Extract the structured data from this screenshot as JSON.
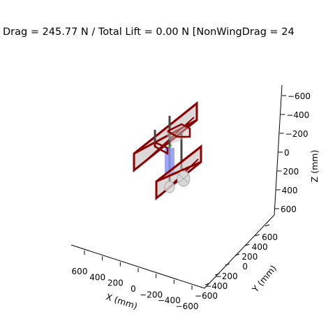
{
  "chart_data": {
    "type": "3d-wireframe",
    "title": "Drag = 245.77 N / Total Lift = 0.00 N [NonWingDrag = 24",
    "xlabel": "X (mm)",
    "ylabel": "Y (mm)",
    "zlabel": "Z (mm)",
    "xlim": [
      -700,
      700
    ],
    "ylim": [
      -700,
      700
    ],
    "zlim": [
      700,
      -700
    ],
    "x_ticks": [
      "600",
      "400",
      "200",
      "0",
      "−200",
      "−400",
      "−600"
    ],
    "y_ticks": [
      "−600",
      "−400",
      "−200",
      "0",
      "200",
      "400",
      "600"
    ],
    "z_ticks": [
      "−600",
      "−400",
      "−200",
      "0",
      "200",
      "400",
      "600"
    ],
    "grid": false,
    "colors": {
      "wing_frame": "#8b0000",
      "wing_panel": "#c8bcbc",
      "body": "#8c96f0",
      "strut": "#444444",
      "wheel": "#d0d0d0",
      "accent": "#3cb43c"
    }
  }
}
